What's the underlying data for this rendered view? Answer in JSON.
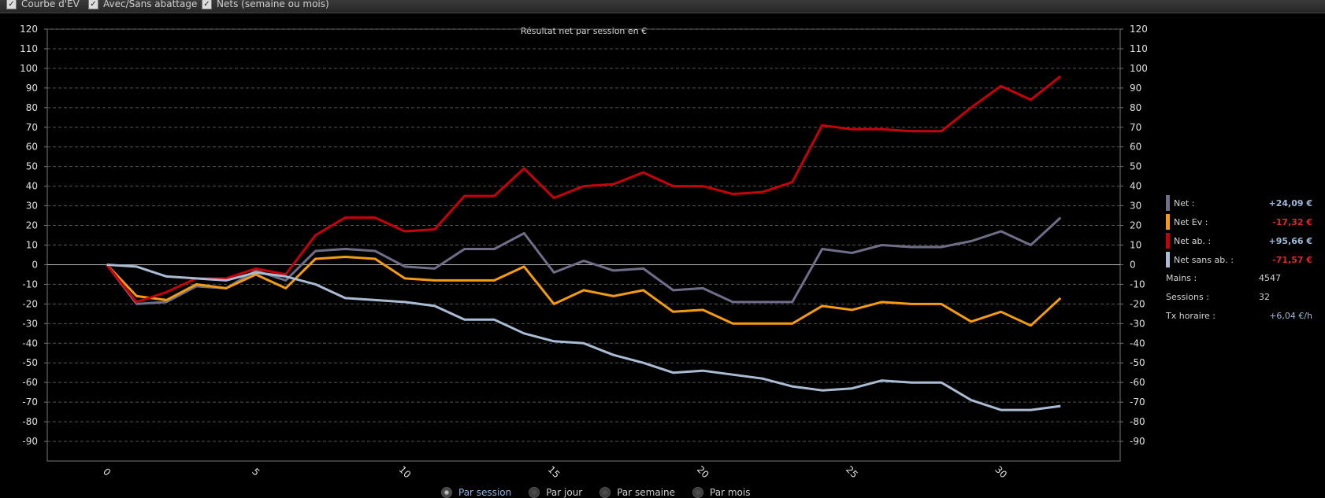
{
  "toolbar": {
    "options": [
      {
        "label": "Courbe d'EV",
        "checked": true
      },
      {
        "label": "Avec/Sans abattage",
        "checked": true
      },
      {
        "label": "Nets (semaine ou mois)",
        "checked": true
      }
    ]
  },
  "chart_data": {
    "type": "line",
    "title": "Résultat net par session en €",
    "xlabel": "",
    "ylabel": "",
    "x": [
      0,
      1,
      2,
      3,
      4,
      5,
      6,
      7,
      8,
      9,
      10,
      11,
      12,
      13,
      14,
      15,
      16,
      17,
      18,
      19,
      20,
      21,
      22,
      23,
      24,
      25,
      26,
      27,
      28,
      29,
      30,
      31,
      32
    ],
    "xticks": [
      0,
      5,
      10,
      15,
      20,
      25,
      30
    ],
    "yticks": [
      -90,
      -80,
      -70,
      -60,
      -50,
      -40,
      -30,
      -20,
      -10,
      0,
      10,
      20,
      30,
      40,
      50,
      60,
      70,
      80,
      90,
      100,
      110,
      120
    ],
    "ylim": [
      -100,
      120
    ],
    "xlim": [
      -2,
      34
    ],
    "grid": true,
    "series": [
      {
        "name": "Net",
        "color": "#6f6e88",
        "values": [
          0,
          -20,
          -19,
          -11,
          -12,
          -3,
          -8,
          7,
          8,
          7,
          -1,
          -2,
          8,
          8,
          16,
          -4,
          2,
          -3,
          -2,
          -13,
          -12,
          -19,
          -19,
          -19,
          8,
          6,
          10,
          9,
          9,
          12,
          17,
          10,
          24
        ]
      },
      {
        "name": "Net Ev",
        "color": "#f39c12",
        "values": [
          0,
          -16,
          -18,
          -10,
          -12,
          -5,
          -12,
          3,
          4,
          3,
          -7,
          -8,
          -8,
          -8,
          -1,
          -20,
          -13,
          -16,
          -13,
          -24,
          -23,
          -30,
          -30,
          -30,
          -21,
          -23,
          -19,
          -20,
          -20,
          -29,
          -24,
          -31,
          -17
        ]
      },
      {
        "name": "Net ab.",
        "color": "#c8000a",
        "values": [
          0,
          -19,
          -14,
          -7,
          -7,
          -2,
          -5,
          15,
          24,
          24,
          17,
          18,
          35,
          35,
          49,
          34,
          40,
          41,
          47,
          40,
          40,
          36,
          37,
          42,
          71,
          69,
          69,
          68,
          68,
          80,
          91,
          84,
          96
        ]
      },
      {
        "name": "Net sans ab.",
        "color": "#aabcd4",
        "values": [
          0,
          -1,
          -6,
          -7,
          -8,
          -4,
          -6,
          -10,
          -17,
          -18,
          -19,
          -21,
          -28,
          -28,
          -35,
          -39,
          -40,
          -46,
          -50,
          -55,
          -54,
          -56,
          -58,
          -62,
          -64,
          -63,
          -59,
          -60,
          -60,
          -69,
          -74,
          -74,
          -72
        ]
      }
    ]
  },
  "legend": [
    {
      "label": "Net :",
      "value": "+24,09 €",
      "color": "#6f6e88",
      "value_color": "#9fb8d8"
    },
    {
      "label": "Net Ev :",
      "value": "-17,32 €",
      "color": "#f39c12",
      "value_color": "#e0262a"
    },
    {
      "label": "Net ab. :",
      "value": "+95,66 €",
      "color": "#c8000a",
      "value_color": "#9fb8d8"
    },
    {
      "label": "Net sans ab. :",
      "value": "-71,57 €",
      "color": "#aabcd4",
      "value_color": "#e0262a"
    }
  ],
  "stats": {
    "mains_label": "Mains :",
    "mains_value": "4547",
    "sessions_label": "Sessions :",
    "sessions_value": "32",
    "rate_label": "Tx horaire :",
    "rate_value": "+6,04 €/h"
  },
  "view": {
    "options": [
      {
        "label": "Par session",
        "selected": true
      },
      {
        "label": "Par jour",
        "selected": false
      },
      {
        "label": "Par semaine",
        "selected": false
      },
      {
        "label": "Par mois",
        "selected": false
      }
    ]
  }
}
